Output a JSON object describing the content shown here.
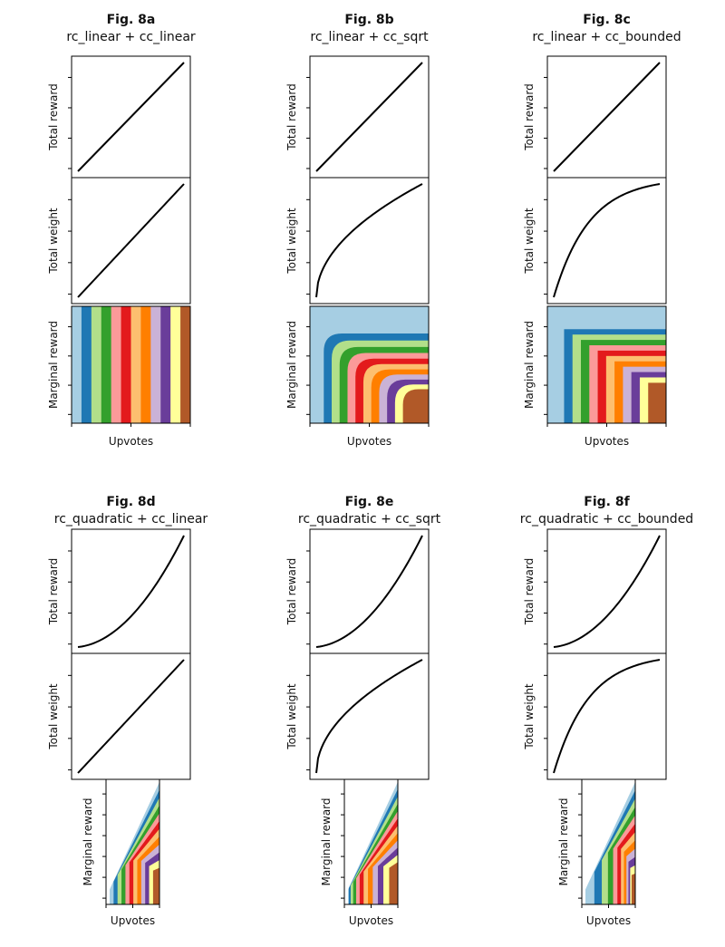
{
  "chart_data": [
    {
      "id": "a",
      "type": "line",
      "title": "Fig. 8a",
      "subtitle": "rc_linear + cc_linear",
      "reward": "linear",
      "weight": "linear",
      "panels": {
        "total_reward_ylabel": "Total reward",
        "total_weight_ylabel": "Total weight",
        "marginal_ylabel": "Marginal reward",
        "xlabel": "Upvotes"
      }
    },
    {
      "id": "b",
      "type": "line",
      "title": "Fig. 8b",
      "subtitle": "rc_linear + cc_sqrt",
      "reward": "linear",
      "weight": "sqrt",
      "panels": {
        "total_reward_ylabel": "Total reward",
        "total_weight_ylabel": "Total weight",
        "marginal_ylabel": "Marginal reward",
        "xlabel": "Upvotes"
      }
    },
    {
      "id": "c",
      "type": "line",
      "title": "Fig. 8c",
      "subtitle": "rc_linear + cc_bounded",
      "reward": "linear",
      "weight": "bounded",
      "panels": {
        "total_reward_ylabel": "Total reward",
        "total_weight_ylabel": "Total weight",
        "marginal_ylabel": "Marginal reward",
        "xlabel": "Upvotes"
      }
    },
    {
      "id": "d",
      "type": "line",
      "title": "Fig. 8d",
      "subtitle": "rc_quadratic + cc_linear",
      "reward": "quadratic",
      "weight": "linear",
      "panels": {
        "total_reward_ylabel": "Total reward",
        "total_weight_ylabel": "Total weight",
        "marginal_ylabel": "Marginal reward",
        "xlabel": "Upvotes"
      }
    },
    {
      "id": "e",
      "type": "line",
      "title": "Fig. 8e",
      "subtitle": "rc_quadratic + cc_sqrt",
      "reward": "quadratic",
      "weight": "sqrt",
      "panels": {
        "total_reward_ylabel": "Total reward",
        "total_weight_ylabel": "Total weight",
        "marginal_ylabel": "Marginal reward",
        "xlabel": "Upvotes"
      }
    },
    {
      "id": "f",
      "type": "line",
      "title": "Fig. 8f",
      "subtitle": "rc_quadratic + cc_bounded",
      "reward": "quadratic",
      "weight": "bounded",
      "panels": {
        "total_reward_ylabel": "Total reward",
        "total_weight_ylabel": "Total weight",
        "marginal_ylabel": "Marginal reward",
        "xlabel": "Upvotes"
      }
    }
  ],
  "colors": {
    "line": "#000000",
    "bands": [
      "#a6cee3",
      "#1f78b4",
      "#b2df8a",
      "#33a02c",
      "#fb9a99",
      "#e31a1c",
      "#fdbf6f",
      "#ff7f00",
      "#cab2d6",
      "#6a3d9a",
      "#ffff99",
      "#b15928"
    ]
  }
}
